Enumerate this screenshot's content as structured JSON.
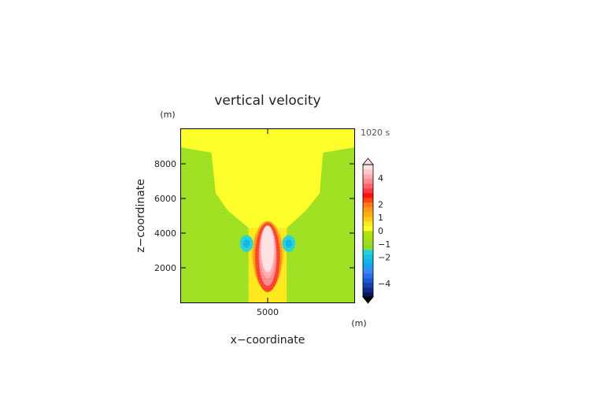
{
  "chart_data": {
    "type": "heatmap",
    "title": "vertical velocity",
    "time_label": "1020 s",
    "xlabel": "x−coordinate",
    "ylabel": "z−coordinate",
    "x_unit": "(m)",
    "y_unit": "(m)",
    "xlim": [
      0,
      10000
    ],
    "ylim": [
      0,
      10000
    ],
    "x_ticks": [
      5000
    ],
    "x_tick_labels": [
      "5000"
    ],
    "y_ticks": [
      2000,
      4000,
      6000,
      8000
    ],
    "y_tick_labels": [
      "2000",
      "4000",
      "6000",
      "8000"
    ],
    "colorbar": {
      "levels": [
        -5,
        -4.5,
        -4,
        -3.5,
        -3,
        -2.5,
        -2,
        -1.75,
        -1.5,
        -1.25,
        -1,
        -0.75,
        -0.5,
        -0.25,
        0,
        0.25,
        0.5,
        0.75,
        1,
        1.25,
        1.5,
        1.75,
        2,
        2.5,
        3,
        3.5,
        4,
        4.5,
        5
      ],
      "colors": [
        "#0a1660",
        "#0e2a8a",
        "#1440b0",
        "#1c58d0",
        "#2a70e8",
        "#3a88f4",
        "#1aa0f0",
        "#10b4e8",
        "#14c4e0",
        "#20d4d8",
        "#8cdc28",
        "#9ade20",
        "#a8e010",
        "#b4e400",
        "#ffff26",
        "#ffe81a",
        "#ffcc10",
        "#ffb010",
        "#ff9a18",
        "#ff7a18",
        "#ff4410",
        "#ff1010",
        "#ff3a40",
        "#ff6468",
        "#ff8a8e",
        "#ffaaae",
        "#ffc8ca",
        "#ffe0e2"
      ],
      "tick_values": [
        4,
        2,
        1,
        0,
        -1,
        -2,
        -4
      ],
      "tick_labels": [
        "4",
        "2",
        "1",
        "0",
        "−1",
        "−2",
        "−4"
      ]
    },
    "background_color": "#9de01e",
    "regions": [
      {
        "kind": "band",
        "xmin": 3400,
        "xmax": 8100,
        "ymin": 9300,
        "ymax": 10000,
        "value": 0.1
      },
      {
        "kind": "funnel",
        "value": 0.1,
        "left_edge": [
          [
            0,
            8950
          ],
          [
            1750,
            8650
          ],
          [
            2000,
            6300
          ],
          [
            2700,
            5300
          ],
          [
            3900,
            4300
          ],
          [
            3900,
            4000
          ]
        ],
        "right_edge": [
          [
            6100,
            4000
          ],
          [
            6100,
            4300
          ],
          [
            7200,
            5300
          ],
          [
            8000,
            6300
          ],
          [
            8200,
            8650
          ],
          [
            10000,
            8950
          ]
        ]
      },
      {
        "kind": "column",
        "xmin": 3900,
        "xmax": 6100,
        "ymin": 0,
        "ymax": 4300,
        "value": 0.3
      },
      {
        "kind": "ellipse",
        "cx": 5000,
        "cy": 2900,
        "rx": 950,
        "ry": 1550,
        "value": 0.6
      },
      {
        "kind": "ellipse",
        "cx": 5000,
        "cy": 2700,
        "rx": 850,
        "ry": 2000,
        "value": 1.1
      },
      {
        "kind": "ellipse",
        "cx": 5000,
        "cy": 2600,
        "rx": 720,
        "ry": 2000,
        "value": 1.6
      },
      {
        "kind": "ellipse",
        "cx": 5000,
        "cy": 2600,
        "rx": 600,
        "ry": 1900,
        "value": 2.2
      },
      {
        "kind": "ellipse",
        "cx": 5000,
        "cy": 2700,
        "rx": 520,
        "ry": 1750,
        "value": 3.0
      },
      {
        "kind": "ellipse",
        "cx": 5000,
        "cy": 2900,
        "rx": 450,
        "ry": 1500,
        "value": 3.8
      },
      {
        "kind": "ellipse",
        "cx": 5000,
        "cy": 3100,
        "rx": 380,
        "ry": 1350,
        "value": 4.6
      },
      {
        "kind": "ellipse",
        "cx": 3780,
        "cy": 3400,
        "rx": 380,
        "ry": 480,
        "value": -1.2
      },
      {
        "kind": "ellipse",
        "cx": 3780,
        "cy": 3400,
        "rx": 200,
        "ry": 240,
        "value": -1.6
      },
      {
        "kind": "ellipse",
        "cx": 6220,
        "cy": 3400,
        "rx": 380,
        "ry": 480,
        "value": -1.2
      },
      {
        "kind": "ellipse",
        "cx": 6220,
        "cy": 3400,
        "rx": 200,
        "ry": 240,
        "value": -1.6
      }
    ]
  }
}
